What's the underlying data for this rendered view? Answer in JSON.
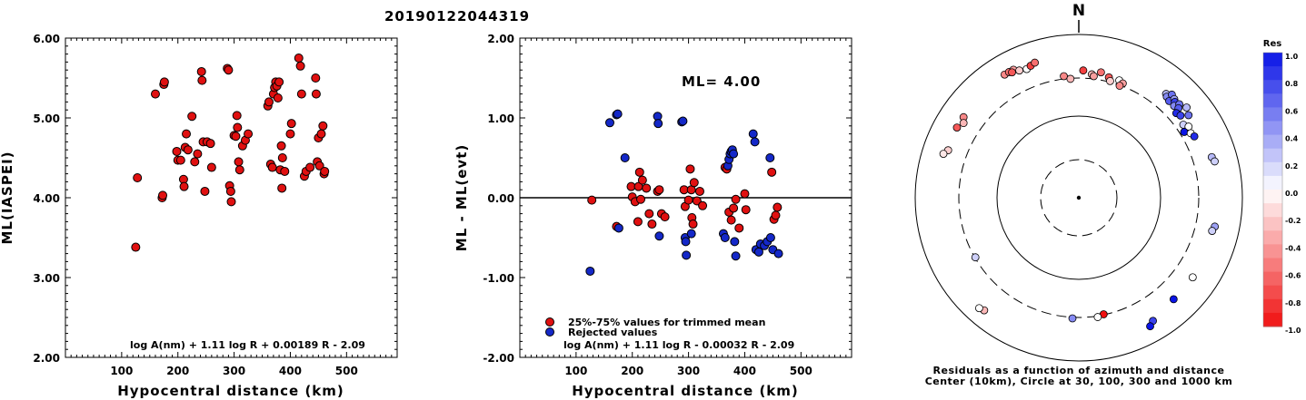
{
  "title": "20190122044319",
  "chart_data": [
    {
      "type": "scatter",
      "name": "ml-vs-distance",
      "xlabel": "Hypocentral distance (km)",
      "ylabel": "ML(IASPEI)",
      "xlim": [
        0,
        590
      ],
      "ylim": [
        2.0,
        6.0
      ],
      "xticks": [
        100,
        200,
        300,
        400,
        500
      ],
      "yticks": [
        "2.00",
        "3.00",
        "4.00",
        "5.00",
        "6.00"
      ],
      "formula": "log A(nm) + 1.11 log R + 0.00189 R - 2.09",
      "points": [
        [
          125,
          3.38
        ],
        [
          128,
          4.25
        ],
        [
          160,
          5.3
        ],
        [
          172,
          4.0
        ],
        [
          173,
          4.03
        ],
        [
          175,
          5.42
        ],
        [
          176,
          5.45
        ],
        [
          198,
          4.58
        ],
        [
          200,
          4.47
        ],
        [
          205,
          4.47
        ],
        [
          210,
          4.23
        ],
        [
          211,
          4.14
        ],
        [
          213,
          4.63
        ],
        [
          215,
          4.8
        ],
        [
          218,
          4.6
        ],
        [
          225,
          5.02
        ],
        [
          230,
          4.45
        ],
        [
          235,
          4.55
        ],
        [
          242,
          5.58
        ],
        [
          243,
          5.47
        ],
        [
          245,
          4.7
        ],
        [
          248,
          4.08
        ],
        [
          252,
          4.7
        ],
        [
          258,
          4.68
        ],
        [
          260,
          4.38
        ],
        [
          288,
          5.62
        ],
        [
          290,
          5.6
        ],
        [
          292,
          4.15
        ],
        [
          294,
          4.08
        ],
        [
          295,
          3.95
        ],
        [
          300,
          4.78
        ],
        [
          303,
          4.77
        ],
        [
          305,
          5.03
        ],
        [
          306,
          4.88
        ],
        [
          308,
          4.45
        ],
        [
          310,
          4.35
        ],
        [
          315,
          4.65
        ],
        [
          320,
          4.72
        ],
        [
          325,
          4.8
        ],
        [
          360,
          5.15
        ],
        [
          362,
          5.2
        ],
        [
          365,
          4.42
        ],
        [
          368,
          4.38
        ],
        [
          370,
          5.3
        ],
        [
          372,
          5.38
        ],
        [
          374,
          5.45
        ],
        [
          376,
          5.4
        ],
        [
          378,
          5.25
        ],
        [
          380,
          5.45
        ],
        [
          382,
          4.35
        ],
        [
          384,
          4.65
        ],
        [
          385,
          4.12
        ],
        [
          386,
          4.5
        ],
        [
          390,
          4.33
        ],
        [
          400,
          4.8
        ],
        [
          402,
          4.93
        ],
        [
          415,
          5.75
        ],
        [
          418,
          5.65
        ],
        [
          420,
          5.3
        ],
        [
          425,
          4.27
        ],
        [
          428,
          4.33
        ],
        [
          435,
          4.38
        ],
        [
          445,
          5.5
        ],
        [
          446,
          5.3
        ],
        [
          448,
          4.45
        ],
        [
          450,
          4.75
        ],
        [
          452,
          4.4
        ],
        [
          455,
          4.8
        ],
        [
          458,
          4.9
        ],
        [
          460,
          4.3
        ],
        [
          461,
          4.33
        ]
      ]
    },
    {
      "type": "scatter",
      "name": "residual-vs-distance",
      "xlabel": "Hypocentral distance (km)",
      "ylabel": "ML - ML(evt)",
      "xlim": [
        0,
        590
      ],
      "ylim": [
        -2.0,
        2.0
      ],
      "xticks": [
        100,
        200,
        300,
        400,
        500
      ],
      "yticks": [
        "-2.00",
        "-1.00",
        "0.00",
        "1.00",
        "2.00"
      ],
      "ml_label": "ML= 4.00",
      "formula": "log A(nm) + 1.11 log R - 0.00032 R - 2.09",
      "legend": [
        "25%-75% values for trimmed mean",
        "Rejected values"
      ],
      "series": [
        {
          "name": "25%-75% values for trimmed mean",
          "color": "#e01010",
          "points": [
            [
              128,
              -0.03
            ],
            [
              172,
              -0.36
            ],
            [
              198,
              0.14
            ],
            [
              200,
              0.01
            ],
            [
              205,
              -0.05
            ],
            [
              210,
              -0.3
            ],
            [
              211,
              0.14
            ],
            [
              213,
              0.32
            ],
            [
              215,
              -0.02
            ],
            [
              218,
              0.22
            ],
            [
              225,
              0.12
            ],
            [
              230,
              -0.2
            ],
            [
              235,
              -0.33
            ],
            [
              245,
              0.08
            ],
            [
              248,
              0.1
            ],
            [
              252,
              -0.2
            ],
            [
              258,
              -0.24
            ],
            [
              292,
              0.1
            ],
            [
              294,
              -0.11
            ],
            [
              300,
              -0.03
            ],
            [
              303,
              0.36
            ],
            [
              305,
              0.1
            ],
            [
              306,
              -0.25
            ],
            [
              308,
              -0.33
            ],
            [
              310,
              0.19
            ],
            [
              315,
              -0.04
            ],
            [
              320,
              0.08
            ],
            [
              325,
              -0.1
            ],
            [
              365,
              0.38
            ],
            [
              368,
              0.36
            ],
            [
              372,
              -0.18
            ],
            [
              376,
              -0.28
            ],
            [
              380,
              -0.13
            ],
            [
              384,
              -0.02
            ],
            [
              390,
              -0.38
            ],
            [
              400,
              0.05
            ],
            [
              402,
              -0.15
            ],
            [
              448,
              0.32
            ],
            [
              452,
              -0.27
            ],
            [
              455,
              -0.22
            ],
            [
              458,
              -0.12
            ]
          ]
        },
        {
          "name": "Rejected values",
          "color": "#1428c8",
          "points": [
            [
              125,
              -0.92
            ],
            [
              160,
              0.94
            ],
            [
              172,
              1.04
            ],
            [
              174,
              1.05
            ],
            [
              176,
              -0.38
            ],
            [
              187,
              0.5
            ],
            [
              245,
              1.02
            ],
            [
              246,
              0.93
            ],
            [
              248,
              -0.48
            ],
            [
              288,
              0.95
            ],
            [
              290,
              0.96
            ],
            [
              294,
              -0.5
            ],
            [
              295,
              -0.55
            ],
            [
              296,
              -0.72
            ],
            [
              305,
              -0.45
            ],
            [
              362,
              -0.45
            ],
            [
              365,
              -0.5
            ],
            [
              370,
              0.4
            ],
            [
              372,
              0.48
            ],
            [
              374,
              0.55
            ],
            [
              376,
              0.58
            ],
            [
              378,
              0.6
            ],
            [
              380,
              0.55
            ],
            [
              382,
              -0.55
            ],
            [
              384,
              -0.73
            ],
            [
              415,
              0.8
            ],
            [
              418,
              0.7
            ],
            [
              420,
              -0.65
            ],
            [
              425,
              -0.68
            ],
            [
              428,
              -0.58
            ],
            [
              435,
              -0.6
            ],
            [
              440,
              -0.55
            ],
            [
              445,
              0.5
            ],
            [
              446,
              -0.5
            ],
            [
              450,
              -0.65
            ],
            [
              460,
              -0.7
            ]
          ]
        }
      ]
    },
    {
      "type": "polar-scatter",
      "name": "residual-map",
      "north_label": "N",
      "caption_line1": "Residuals as a function of azimuth and distance",
      "caption_line2": "Center (10km), Circle at 30, 100, 300 and 1000 km",
      "colorbar": {
        "title": "Res",
        "ticks": [
          "1.0",
          "0.8",
          "0.6",
          "0.4",
          "0.2",
          "0.0",
          "-0.2",
          "-0.4",
          "-0.6",
          "-0.8",
          "-1.0"
        ],
        "positive_color": "#0a14e6",
        "negative_color": "#f01010"
      },
      "stations": [
        {
          "az": 300,
          "r": 0.86,
          "res": -0.7
        },
        {
          "az": 305,
          "r": 0.86,
          "res": -0.5
        },
        {
          "az": 303,
          "r": 0.84,
          "res": -0.3
        },
        {
          "az": 290,
          "r": 0.85,
          "res": -0.2
        },
        {
          "az": 288,
          "r": 0.87,
          "res": -0.1
        },
        {
          "az": 329,
          "r": 0.88,
          "res": -0.5
        },
        {
          "az": 331,
          "r": 0.88,
          "res": -0.6
        },
        {
          "az": 333,
          "r": 0.88,
          "res": -0.4
        },
        {
          "az": 332,
          "r": 0.87,
          "res": -0.7
        },
        {
          "az": 335,
          "r": 0.86,
          "res": -0.2
        },
        {
          "az": 338,
          "r": 0.85,
          "res": 0.0
        },
        {
          "az": 340,
          "r": 0.86,
          "res": -0.8
        },
        {
          "az": 342,
          "r": 0.87,
          "res": -0.6
        },
        {
          "az": 353,
          "r": 0.75,
          "res": -0.5
        },
        {
          "az": 356,
          "r": 0.73,
          "res": -0.3
        },
        {
          "az": 2,
          "r": 0.78,
          "res": -0.8
        },
        {
          "az": 6,
          "r": 0.76,
          "res": -0.3
        },
        {
          "az": 7,
          "r": 0.75,
          "res": -0.4
        },
        {
          "az": 10,
          "r": 0.78,
          "res": -0.6
        },
        {
          "az": 14,
          "r": 0.76,
          "res": -0.7
        },
        {
          "az": 15,
          "r": 0.74,
          "res": -0.2
        },
        {
          "az": 19,
          "r": 0.76,
          "res": 0.0
        },
        {
          "az": 21,
          "r": 0.75,
          "res": -0.4
        },
        {
          "az": 20,
          "r": 0.73,
          "res": -0.5
        },
        {
          "az": 40,
          "r": 0.83,
          "res": 0.3
        },
        {
          "az": 41,
          "r": 0.82,
          "res": 0.5
        },
        {
          "az": 42,
          "r": 0.85,
          "res": 0.6
        },
        {
          "az": 43,
          "r": 0.81,
          "res": 0.7
        },
        {
          "az": 44,
          "r": 0.84,
          "res": 0.4
        },
        {
          "az": 45,
          "r": 0.83,
          "res": 0.8
        },
        {
          "az": 46,
          "r": 0.81,
          "res": 0.5
        },
        {
          "az": 47,
          "r": 0.84,
          "res": 0.6
        },
        {
          "az": 48,
          "r": 0.82,
          "res": 0.7
        },
        {
          "az": 49,
          "r": 0.79,
          "res": 0.9
        },
        {
          "az": 50,
          "r": 0.86,
          "res": 0.3
        },
        {
          "az": 51,
          "r": 0.8,
          "res": 0.8
        },
        {
          "az": 53,
          "r": 0.84,
          "res": 0.6
        },
        {
          "az": 55,
          "r": 0.78,
          "res": 0.2
        },
        {
          "az": 57,
          "r": 0.8,
          "res": 0.0
        },
        {
          "az": 58,
          "r": 0.76,
          "res": 1.0
        },
        {
          "az": 60,
          "r": 0.79,
          "res": 0.0
        },
        {
          "az": 62,
          "r": 0.8,
          "res": 0.9
        },
        {
          "az": 73,
          "r": 0.85,
          "res": 0.3
        },
        {
          "az": 75,
          "r": 0.86,
          "res": 0.2
        },
        {
          "az": 102,
          "r": 0.85,
          "res": 0.4
        },
        {
          "az": 104,
          "r": 0.84,
          "res": 0.2
        },
        {
          "az": 125,
          "r": 0.85,
          "res": 0.0
        },
        {
          "az": 137,
          "r": 0.85,
          "res": 1.0
        },
        {
          "az": 149,
          "r": 0.88,
          "res": 0.8
        },
        {
          "az": 151,
          "r": 0.9,
          "res": 1.0
        },
        {
          "az": 168,
          "r": 0.73,
          "res": -1.0
        },
        {
          "az": 171,
          "r": 0.74,
          "res": 0.0
        },
        {
          "az": 183,
          "r": 0.74,
          "res": 0.5
        },
        {
          "az": 220,
          "r": 0.9,
          "res": -0.3
        },
        {
          "az": 222,
          "r": 0.91,
          "res": 0.0
        },
        {
          "az": 240,
          "r": 0.73,
          "res": 0.2
        }
      ]
    }
  ]
}
